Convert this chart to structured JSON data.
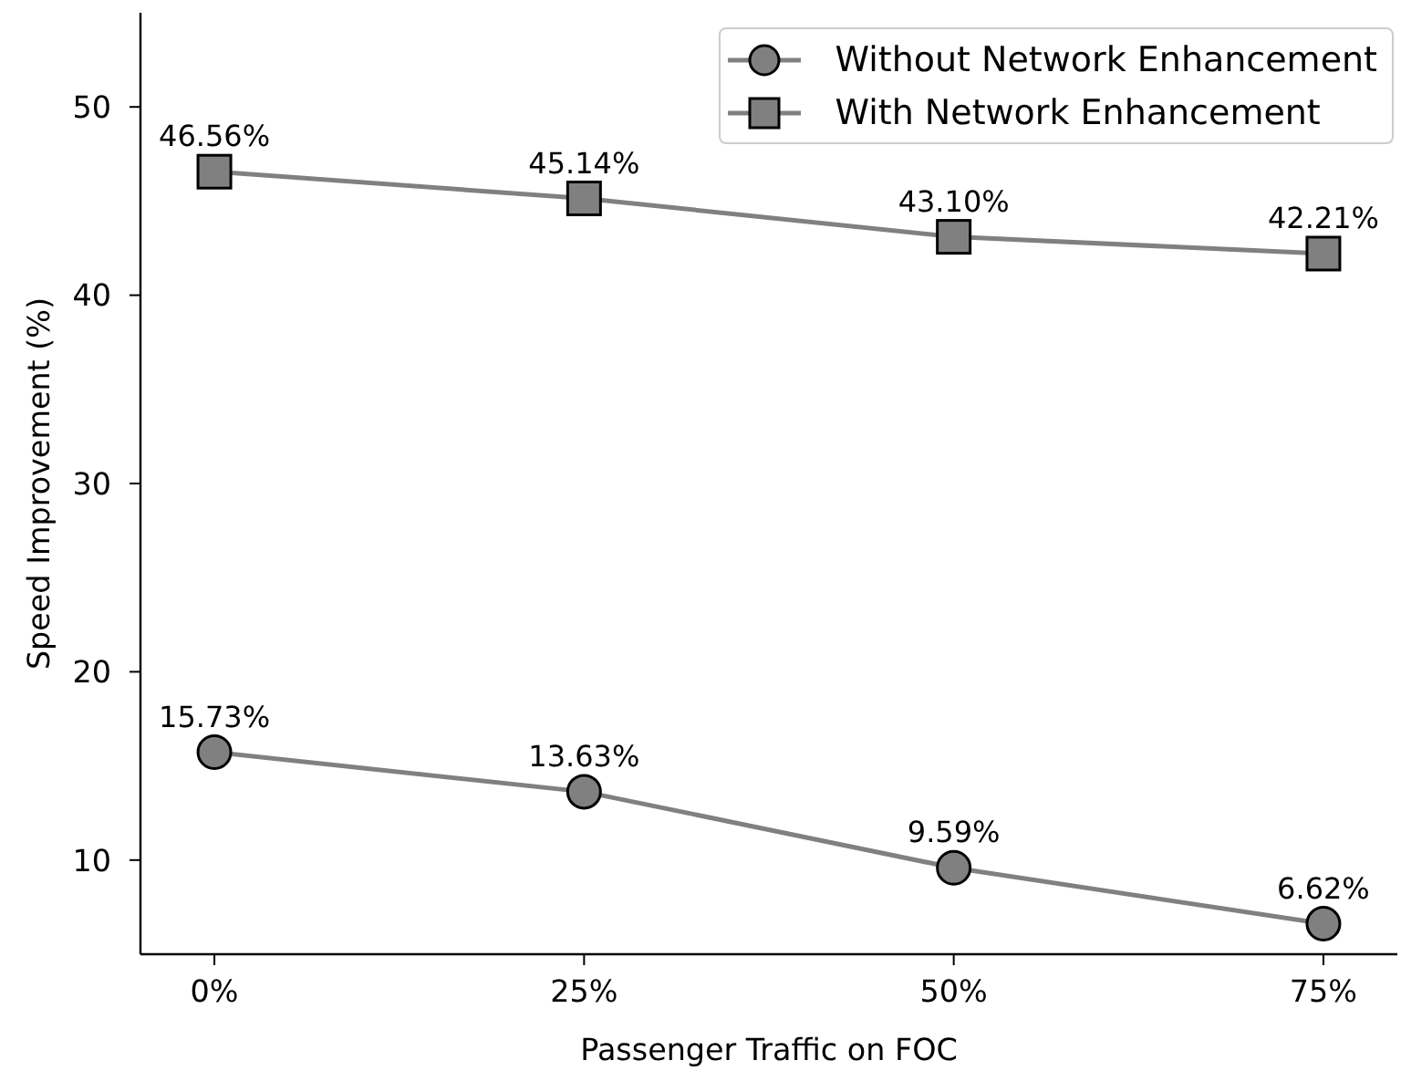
{
  "chart_data": {
    "type": "line",
    "xlabel": "Passenger Traffic on FOC",
    "ylabel": "Speed Improvement (%)",
    "categories": [
      "0%",
      "25%",
      "50%",
      "75%"
    ],
    "series": [
      {
        "name": "Without Network Enhancement",
        "color": "#808080",
        "marker": "circle",
        "values": [
          15.73,
          13.63,
          9.59,
          6.62
        ],
        "value_labels": [
          "15.73%",
          "13.63%",
          "9.59%",
          "6.62%"
        ]
      },
      {
        "name": "With Network Enhancement",
        "color": "#808080",
        "marker": "square",
        "values": [
          46.56,
          45.14,
          43.1,
          42.21
        ],
        "value_labels": [
          "46.56%",
          "45.14%",
          "43.10%",
          "42.21%"
        ]
      }
    ],
    "ylim": [
      5,
      55
    ],
    "yticks": [
      10,
      20,
      30,
      40,
      50
    ],
    "legend": "top right",
    "line_style": "solid"
  }
}
